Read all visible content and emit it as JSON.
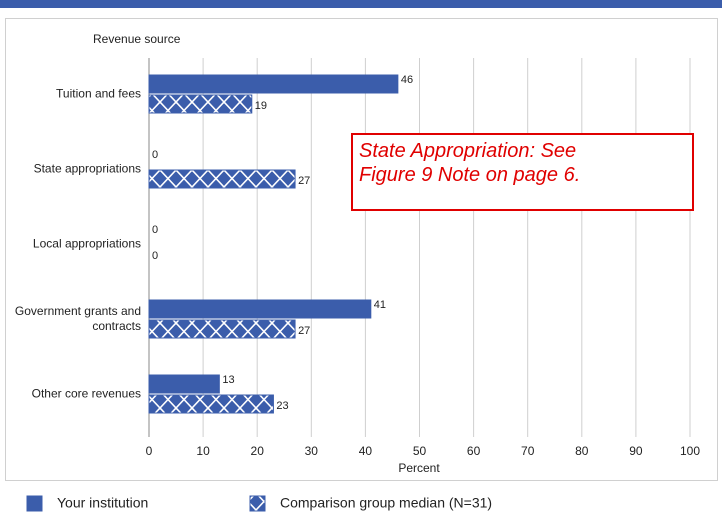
{
  "chart_data": {
    "type": "hbar",
    "y_axis_label": "Revenue source",
    "x_axis_label": "Percent",
    "categories": [
      "Tuition and fees",
      "State appropriations",
      "Local appropriations",
      "Government grants and contracts",
      "Other core revenues"
    ],
    "series": [
      {
        "name": "Your institution",
        "color": "#3b5dab",
        "pattern": "solid",
        "values": [
          46,
          0,
          0,
          41,
          13
        ]
      },
      {
        "name": "Comparison group median (N=31)",
        "color": "#3b5dab",
        "pattern": "crosshatch",
        "values": [
          19,
          27,
          0,
          27,
          23
        ]
      }
    ],
    "xlim": [
      0,
      100
    ],
    "xticks": [
      0,
      10,
      20,
      30,
      40,
      50,
      60,
      70,
      80,
      90,
      100
    ],
    "grid": true,
    "annotation": [
      "State Appropriation: See",
      "Figure 9 Note on page 6."
    ]
  }
}
